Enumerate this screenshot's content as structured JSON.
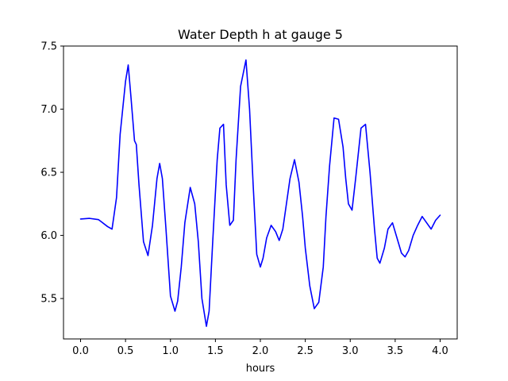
{
  "chart_data": {
    "type": "line",
    "title": "Water Depth h at gauge 5",
    "xlabel": "hours",
    "ylabel": "",
    "xlim": [
      -0.19,
      4.19
    ],
    "ylim": [
      5.18,
      7.5
    ],
    "xticks": [
      0.0,
      0.5,
      1.0,
      1.5,
      2.0,
      2.5,
      3.0,
      3.5,
      4.0
    ],
    "xtick_labels": [
      "0.0",
      "0.5",
      "1.0",
      "1.5",
      "2.0",
      "2.5",
      "3.0",
      "3.5",
      "4.0"
    ],
    "yticks": [
      5.5,
      6.0,
      6.5,
      7.0,
      7.5
    ],
    "ytick_labels": [
      "5.5",
      "6.0",
      "6.5",
      "7.0",
      "7.5"
    ],
    "grid": false,
    "series": [
      {
        "color": "#0000ff",
        "x": [
          0.0,
          0.1,
          0.2,
          0.3,
          0.35,
          0.4,
          0.44,
          0.5,
          0.53,
          0.56,
          0.6,
          0.62,
          0.65,
          0.7,
          0.75,
          0.8,
          0.85,
          0.88,
          0.91,
          0.95,
          1.0,
          1.05,
          1.08,
          1.12,
          1.16,
          1.22,
          1.27,
          1.31,
          1.35,
          1.4,
          1.43,
          1.47,
          1.52,
          1.55,
          1.59,
          1.62,
          1.66,
          1.7,
          1.73,
          1.78,
          1.84,
          1.88,
          1.92,
          1.96,
          2.0,
          2.03,
          2.07,
          2.12,
          2.17,
          2.21,
          2.25,
          2.29,
          2.33,
          2.38,
          2.43,
          2.47,
          2.5,
          2.55,
          2.6,
          2.65,
          2.7,
          2.73,
          2.77,
          2.82,
          2.87,
          2.92,
          2.95,
          2.98,
          3.02,
          3.06,
          3.12,
          3.17,
          3.22,
          3.27,
          3.3,
          3.33,
          3.38,
          3.42,
          3.47,
          3.52,
          3.57,
          3.61,
          3.65,
          3.7,
          3.75,
          3.8,
          3.85,
          3.9,
          3.95,
          4.0
        ],
        "values": [
          6.13,
          6.135,
          6.125,
          6.07,
          6.05,
          6.3,
          6.8,
          7.22,
          7.35,
          7.1,
          6.75,
          6.72,
          6.4,
          5.95,
          5.84,
          6.08,
          6.45,
          6.57,
          6.45,
          6.05,
          5.52,
          5.4,
          5.48,
          5.75,
          6.1,
          6.38,
          6.25,
          5.95,
          5.5,
          5.28,
          5.4,
          5.95,
          6.6,
          6.85,
          6.88,
          6.4,
          6.08,
          6.12,
          6.6,
          7.18,
          7.39,
          7.0,
          6.4,
          5.85,
          5.75,
          5.82,
          5.98,
          6.08,
          6.03,
          5.96,
          6.05,
          6.25,
          6.45,
          6.6,
          6.42,
          6.15,
          5.9,
          5.6,
          5.42,
          5.47,
          5.75,
          6.15,
          6.55,
          6.93,
          6.92,
          6.7,
          6.45,
          6.25,
          6.2,
          6.45,
          6.85,
          6.88,
          6.5,
          6.05,
          5.82,
          5.78,
          5.9,
          6.05,
          6.1,
          5.98,
          5.86,
          5.83,
          5.88,
          6.0,
          6.08,
          6.15,
          6.1,
          6.05,
          6.12,
          6.16
        ]
      }
    ]
  }
}
